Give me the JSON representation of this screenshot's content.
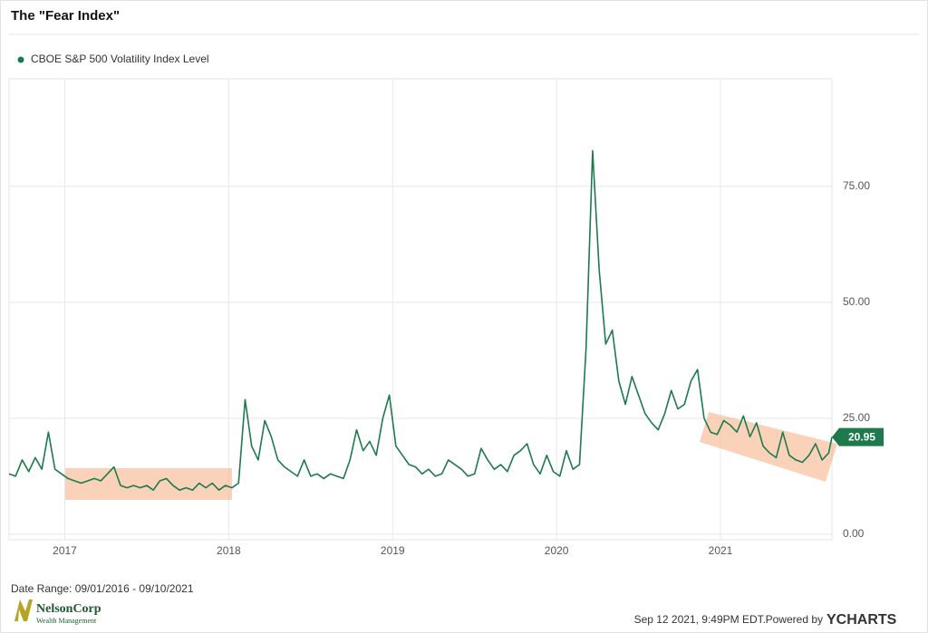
{
  "chart_data": {
    "type": "line",
    "title": "The \"Fear Index\"",
    "x": [
      2016.66,
      2016.7,
      2016.74,
      2016.78,
      2016.82,
      2016.86,
      2016.9,
      2016.94,
      2016.98,
      2017.02,
      2017.06,
      2017.1,
      2017.14,
      2017.18,
      2017.22,
      2017.26,
      2017.3,
      2017.34,
      2017.38,
      2017.42,
      2017.46,
      2017.5,
      2017.54,
      2017.58,
      2017.62,
      2017.66,
      2017.7,
      2017.74,
      2017.78,
      2017.82,
      2017.86,
      2017.9,
      2017.94,
      2017.98,
      2018.02,
      2018.06,
      2018.1,
      2018.14,
      2018.18,
      2018.22,
      2018.26,
      2018.3,
      2018.34,
      2018.38,
      2018.42,
      2018.46,
      2018.5,
      2018.54,
      2018.58,
      2018.62,
      2018.66,
      2018.7,
      2018.74,
      2018.78,
      2018.82,
      2018.86,
      2018.9,
      2018.94,
      2018.98,
      2019.02,
      2019.06,
      2019.1,
      2019.14,
      2019.18,
      2019.22,
      2019.26,
      2019.3,
      2019.34,
      2019.38,
      2019.42,
      2019.46,
      2019.5,
      2019.54,
      2019.58,
      2019.62,
      2019.66,
      2019.7,
      2019.74,
      2019.78,
      2019.82,
      2019.86,
      2019.9,
      2019.94,
      2019.98,
      2020.02,
      2020.06,
      2020.1,
      2020.14,
      2020.18,
      2020.22,
      2020.26,
      2020.3,
      2020.34,
      2020.38,
      2020.42,
      2020.46,
      2020.5,
      2020.54,
      2020.58,
      2020.62,
      2020.66,
      2020.7,
      2020.74,
      2020.78,
      2020.82,
      2020.86,
      2020.9,
      2020.94,
      2020.98,
      2021.02,
      2021.06,
      2021.1,
      2021.14,
      2021.18,
      2021.22,
      2021.26,
      2021.3,
      2021.34,
      2021.38,
      2021.42,
      2021.46,
      2021.5,
      2021.54,
      2021.58,
      2021.62,
      2021.66,
      2021.68
    ],
    "series": [
      {
        "name": "CBOE S&P 500 Volatility Index Level",
        "color": "#1d7a4c",
        "values": [
          13,
          12.5,
          16,
          13.5,
          16.5,
          14,
          22,
          14,
          13,
          12,
          11.5,
          11,
          11.5,
          12,
          11.5,
          13,
          14.5,
          10.5,
          10,
          10.5,
          10,
          10.5,
          9.5,
          11.5,
          12,
          10.5,
          9.5,
          10,
          9.5,
          11,
          10,
          11,
          9.5,
          10.5,
          10,
          11,
          29,
          19,
          16,
          24.5,
          21,
          16,
          14.5,
          13.5,
          12.5,
          16,
          12.5,
          13,
          12,
          13,
          12.5,
          12,
          16,
          22.5,
          18,
          20,
          17,
          25,
          30,
          19,
          17,
          15,
          14.5,
          13,
          14,
          12.5,
          13,
          16,
          15,
          14,
          12.5,
          13,
          18.5,
          16,
          14,
          15,
          13.5,
          17,
          18,
          19.5,
          15,
          13,
          17,
          13.5,
          12.5,
          18,
          14,
          15,
          40,
          82.7,
          57,
          41,
          44,
          33,
          28,
          34,
          30,
          26,
          24,
          22.5,
          26,
          31,
          27,
          28,
          33,
          35.5,
          25,
          22,
          21.5,
          24.5,
          23.5,
          22,
          25.5,
          21,
          24,
          19,
          17.5,
          16.5,
          22,
          17,
          16,
          15.5,
          17,
          19.5,
          16,
          17.5,
          20.95
        ]
      }
    ],
    "xlim": [
      2016.66,
      2021.68
    ],
    "xticks": [
      2017,
      2018,
      2019,
      2020,
      2021
    ],
    "ylim": [
      -1.2,
      98.2
    ],
    "yticks": [
      {
        "value": 0,
        "label": "0.00"
      },
      {
        "value": 25,
        "label": "25.00"
      },
      {
        "value": 50,
        "label": "50.00"
      },
      {
        "value": 75,
        "label": "75.00"
      }
    ],
    "grid": true
  },
  "footer": {
    "date_range": "Date Range: 09/01/2016 - 09/10/2021",
    "timestamp": "Sep 12 2021, 9:49PM EDT.",
    "powered_by": "Powered by",
    "brand": "YCHARTS",
    "logo": {
      "name": "NelsonCorp",
      "tagline": "Wealth Management"
    }
  }
}
